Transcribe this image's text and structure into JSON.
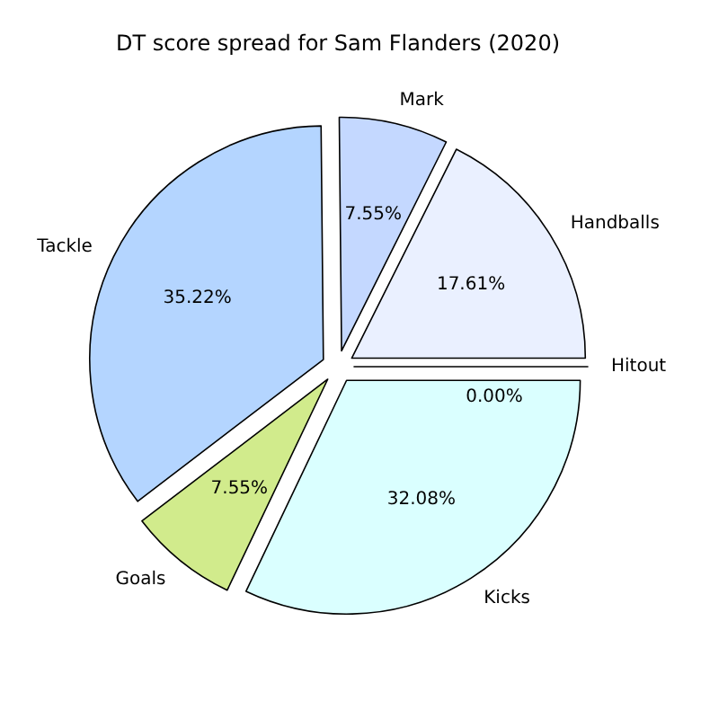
{
  "chart_data": {
    "type": "pie",
    "title": "DT score spread for Sam Flanders (2020)",
    "categories": [
      "Handballs",
      "Mark",
      "Tackle",
      "Goals",
      "Kicks",
      "Hitout"
    ],
    "values": [
      17.61,
      7.55,
      35.22,
      7.55,
      32.08,
      0
    ],
    "value_labels": [
      "17.61%",
      "7.55%",
      "35.22%",
      "7.55%",
      "32.08%",
      "0.00%"
    ],
    "colors": [
      "#eaf0ff",
      "#c4d8ff",
      "#b4d5ff",
      "#d1eb8c",
      "#daffff",
      "#f4f4f4"
    ]
  }
}
